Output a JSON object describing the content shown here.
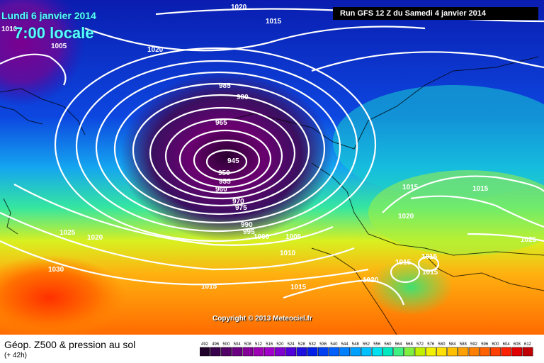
{
  "header": {
    "date": "Lundi 6 janvier 2014",
    "time": "7:00 locale",
    "run": "Run GFS 12 Z du Samedi 4 janvier 2014"
  },
  "copyright": "Copyright © 2013 Meteociel.fr",
  "footer": {
    "title": "Géop. Z500 & pression au sol",
    "subtitle": "(+ 42h)"
  },
  "isobar_labels": [
    "1010",
    "1020",
    "1015",
    "1005",
    "1020",
    "985",
    "980",
    "965",
    "945",
    "950",
    "955",
    "960",
    "970",
    "975",
    "990",
    "995",
    "1000",
    "1005",
    "1010",
    "1015",
    "1020",
    "1015",
    "1020",
    "1015",
    "1015",
    "1015",
    "1025",
    "1020",
    "1030",
    "1015",
    "1015",
    "1025"
  ],
  "legend": {
    "values": [
      "492",
      "496",
      "500",
      "504",
      "508",
      "512",
      "516",
      "520",
      "524",
      "528",
      "532",
      "536",
      "540",
      "544",
      "548",
      "552",
      "556",
      "560",
      "564",
      "568",
      "572",
      "576",
      "580",
      "584",
      "588",
      "592",
      "596",
      "600",
      "604",
      "608",
      "612"
    ],
    "colors": [
      "#20002a",
      "#38004a",
      "#520066",
      "#6b0080",
      "#850099",
      "#9e00b3",
      "#a000c8",
      "#8000d0",
      "#5000d8",
      "#2010e0",
      "#0020e8",
      "#0040f0",
      "#0060ff",
      "#0080ff",
      "#00a0ff",
      "#00c0ff",
      "#00e0f0",
      "#00e8c0",
      "#40f080",
      "#80f040",
      "#c0f000",
      "#f0f000",
      "#ffe000",
      "#ffc000",
      "#ffa000",
      "#ff8000",
      "#ff6000",
      "#ff4000",
      "#ff2000",
      "#e00000",
      "#c00000"
    ]
  }
}
